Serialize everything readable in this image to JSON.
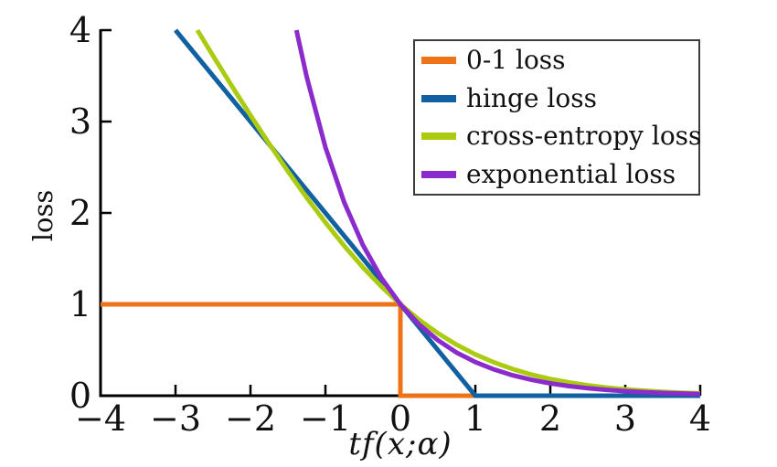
{
  "figure": {
    "background": "#ffffff",
    "axis_color": "#000000",
    "text_color": "#111111"
  },
  "chart_data": {
    "type": "line",
    "title": "",
    "xlabel": "tf(x;α)",
    "ylabel": "loss",
    "xlim": [
      -4,
      4
    ],
    "ylim": [
      0,
      4
    ],
    "grid": false,
    "legend_position": "upper right inside",
    "x_ticks": [
      -4,
      -3,
      -2,
      -1,
      0,
      1,
      2,
      3,
      4
    ],
    "x_tick_labels": [
      "−4",
      "−3",
      "−2",
      "−1",
      "0",
      "1",
      "2",
      "3",
      "4"
    ],
    "y_ticks": [
      0,
      1,
      2,
      3,
      4
    ],
    "y_tick_labels": [
      "0",
      "1",
      "2",
      "3",
      "4"
    ],
    "series": [
      {
        "name": "0-1 loss",
        "color": "#ee7318",
        "formula": "1 if x<0 else 0",
        "x": [
          -4,
          0,
          0,
          4
        ],
        "y": [
          1,
          1,
          0,
          0
        ]
      },
      {
        "name": "hinge loss",
        "color": "#1160a1",
        "formula": "max(0, 1-x), clipped at y=4",
        "x": [
          -3,
          1,
          4
        ],
        "y": [
          4,
          0,
          0
        ]
      },
      {
        "name": "cross-entropy loss",
        "color": "#abcb10",
        "formula": "log2(1+exp(-x)), clipped at y=4",
        "x": [
          -2.708,
          -2.5,
          -2.25,
          -2,
          -1.75,
          -1.5,
          -1.25,
          -1,
          -0.75,
          -0.5,
          -0.25,
          0,
          0.25,
          0.5,
          0.75,
          1,
          1.25,
          1.5,
          1.75,
          2,
          2.25,
          2.5,
          2.75,
          3,
          3.25,
          3.5,
          3.75,
          4
        ],
        "y": [
          4.0,
          3.721,
          3.391,
          3.069,
          2.756,
          2.455,
          2.167,
          1.895,
          1.64,
          1.405,
          1.192,
          1.0,
          0.831,
          0.684,
          0.558,
          0.452,
          0.364,
          0.291,
          0.231,
          0.183,
          0.145,
          0.114,
          0.089,
          0.07,
          0.055,
          0.043,
          0.033,
          0.026
        ]
      },
      {
        "name": "exponential loss",
        "color": "#8b2bcb",
        "formula": "exp(-x), clipped at y=4",
        "x": [
          -1.386,
          -1.25,
          -1,
          -0.75,
          -0.5,
          -0.25,
          0,
          0.25,
          0.5,
          0.75,
          1,
          1.25,
          1.5,
          1.75,
          2,
          2.25,
          2.5,
          2.75,
          3,
          3.25,
          3.5,
          3.75,
          4
        ],
        "y": [
          4.0,
          3.49,
          2.718,
          2.117,
          1.649,
          1.284,
          1.0,
          0.779,
          0.607,
          0.472,
          0.368,
          0.287,
          0.223,
          0.174,
          0.135,
          0.105,
          0.082,
          0.064,
          0.05,
          0.039,
          0.03,
          0.024,
          0.018
        ]
      }
    ]
  }
}
